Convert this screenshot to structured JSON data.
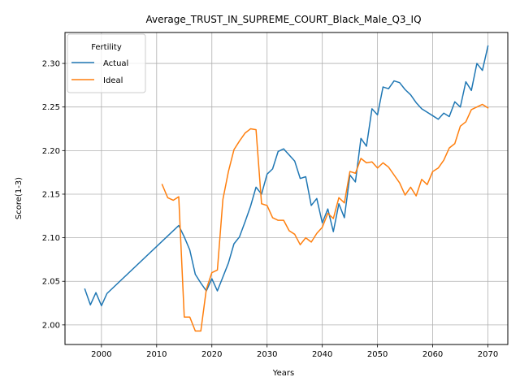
{
  "chart_data": {
    "type": "line",
    "title": "Average_TRUST_IN_SUPREME_COURT_Black_Male_Q3_IQ",
    "xlabel": "Years",
    "ylabel": "Score(1-3)",
    "xlim": [
      1993.4,
      2073.6
    ],
    "ylim": [
      1.9775,
      2.3355
    ],
    "xticks": [
      2000,
      2010,
      2020,
      2030,
      2040,
      2050,
      2060,
      2070
    ],
    "yticks": [
      2.0,
      2.05,
      2.1,
      2.15,
      2.2,
      2.25,
      2.3
    ],
    "ytick_labels": [
      "2.00",
      "2.05",
      "2.10",
      "2.15",
      "2.20",
      "2.25",
      "2.30"
    ],
    "grid": true,
    "legend": {
      "title": "Fertility",
      "placement": "top-left"
    },
    "series": [
      {
        "name": "Actual",
        "color": "#1f77b4",
        "points": [
          [
            1997,
            2.041
          ],
          [
            1998,
            2.023
          ],
          [
            1999,
            2.037
          ],
          [
            2000,
            2.022
          ],
          [
            2001,
            2.036
          ],
          [
            2014,
            2.114
          ],
          [
            2015,
            2.101
          ],
          [
            2016,
            2.086
          ],
          [
            2017,
            2.058
          ],
          [
            2018,
            2.048
          ],
          [
            2019,
            2.039
          ],
          [
            2020,
            2.053
          ],
          [
            2021,
            2.039
          ],
          [
            2022,
            2.055
          ],
          [
            2023,
            2.071
          ],
          [
            2024,
            2.093
          ],
          [
            2025,
            2.101
          ],
          [
            2026,
            2.118
          ],
          [
            2027,
            2.136
          ],
          [
            2028,
            2.158
          ],
          [
            2029,
            2.15
          ],
          [
            2030,
            2.173
          ],
          [
            2031,
            2.179
          ],
          [
            2032,
            2.199
          ],
          [
            2033,
            2.202
          ],
          [
            2034,
            2.195
          ],
          [
            2035,
            2.188
          ],
          [
            2036,
            2.168
          ],
          [
            2037,
            2.17
          ],
          [
            2038,
            2.137
          ],
          [
            2039,
            2.145
          ],
          [
            2040,
            2.117
          ],
          [
            2041,
            2.133
          ],
          [
            2042,
            2.107
          ],
          [
            2043,
            2.139
          ],
          [
            2044,
            2.123
          ],
          [
            2045,
            2.172
          ],
          [
            2046,
            2.164
          ],
          [
            2047,
            2.214
          ],
          [
            2048,
            2.205
          ],
          [
            2049,
            2.248
          ],
          [
            2050,
            2.241
          ],
          [
            2051,
            2.273
          ],
          [
            2052,
            2.271
          ],
          [
            2053,
            2.28
          ],
          [
            2054,
            2.278
          ],
          [
            2055,
            2.27
          ],
          [
            2056,
            2.264
          ],
          [
            2057,
            2.255
          ],
          [
            2058,
            2.248
          ],
          [
            2059,
            2.244
          ],
          [
            2060,
            2.24
          ],
          [
            2061,
            2.236
          ],
          [
            2062,
            2.243
          ],
          [
            2063,
            2.239
          ],
          [
            2064,
            2.256
          ],
          [
            2065,
            2.25
          ],
          [
            2066,
            2.279
          ],
          [
            2067,
            2.269
          ],
          [
            2068,
            2.3
          ],
          [
            2069,
            2.292
          ],
          [
            2070,
            2.32
          ]
        ]
      },
      {
        "name": "Ideal",
        "color": "#ff7f0e",
        "points": [
          [
            2011,
            2.161
          ],
          [
            2012,
            2.146
          ],
          [
            2013,
            2.143
          ],
          [
            2014,
            2.147
          ],
          [
            2015,
            2.009
          ],
          [
            2016,
            2.009
          ],
          [
            2017,
            1.993
          ],
          [
            2018,
            1.993
          ],
          [
            2019,
            2.041
          ],
          [
            2020,
            2.06
          ],
          [
            2021,
            2.063
          ],
          [
            2022,
            2.144
          ],
          [
            2023,
            2.176
          ],
          [
            2024,
            2.201
          ],
          [
            2025,
            2.211
          ],
          [
            2026,
            2.22
          ],
          [
            2027,
            2.225
          ],
          [
            2028,
            2.224
          ],
          [
            2029,
            2.139
          ],
          [
            2030,
            2.137
          ],
          [
            2031,
            2.123
          ],
          [
            2032,
            2.12
          ],
          [
            2033,
            2.12
          ],
          [
            2034,
            2.108
          ],
          [
            2035,
            2.104
          ],
          [
            2036,
            2.092
          ],
          [
            2037,
            2.1
          ],
          [
            2038,
            2.095
          ],
          [
            2039,
            2.105
          ],
          [
            2040,
            2.112
          ],
          [
            2041,
            2.128
          ],
          [
            2042,
            2.122
          ],
          [
            2043,
            2.146
          ],
          [
            2044,
            2.14
          ],
          [
            2045,
            2.176
          ],
          [
            2046,
            2.174
          ],
          [
            2047,
            2.191
          ],
          [
            2048,
            2.186
          ],
          [
            2049,
            2.187
          ],
          [
            2050,
            2.18
          ],
          [
            2051,
            2.186
          ],
          [
            2052,
            2.181
          ],
          [
            2053,
            2.172
          ],
          [
            2054,
            2.163
          ],
          [
            2055,
            2.149
          ],
          [
            2056,
            2.158
          ],
          [
            2057,
            2.148
          ],
          [
            2058,
            2.167
          ],
          [
            2059,
            2.161
          ],
          [
            2060,
            2.176
          ],
          [
            2061,
            2.18
          ],
          [
            2062,
            2.189
          ],
          [
            2063,
            2.203
          ],
          [
            2064,
            2.208
          ],
          [
            2065,
            2.228
          ],
          [
            2066,
            2.233
          ],
          [
            2067,
            2.247
          ],
          [
            2068,
            2.25
          ],
          [
            2069,
            2.253
          ],
          [
            2070,
            2.249
          ]
        ]
      }
    ]
  }
}
